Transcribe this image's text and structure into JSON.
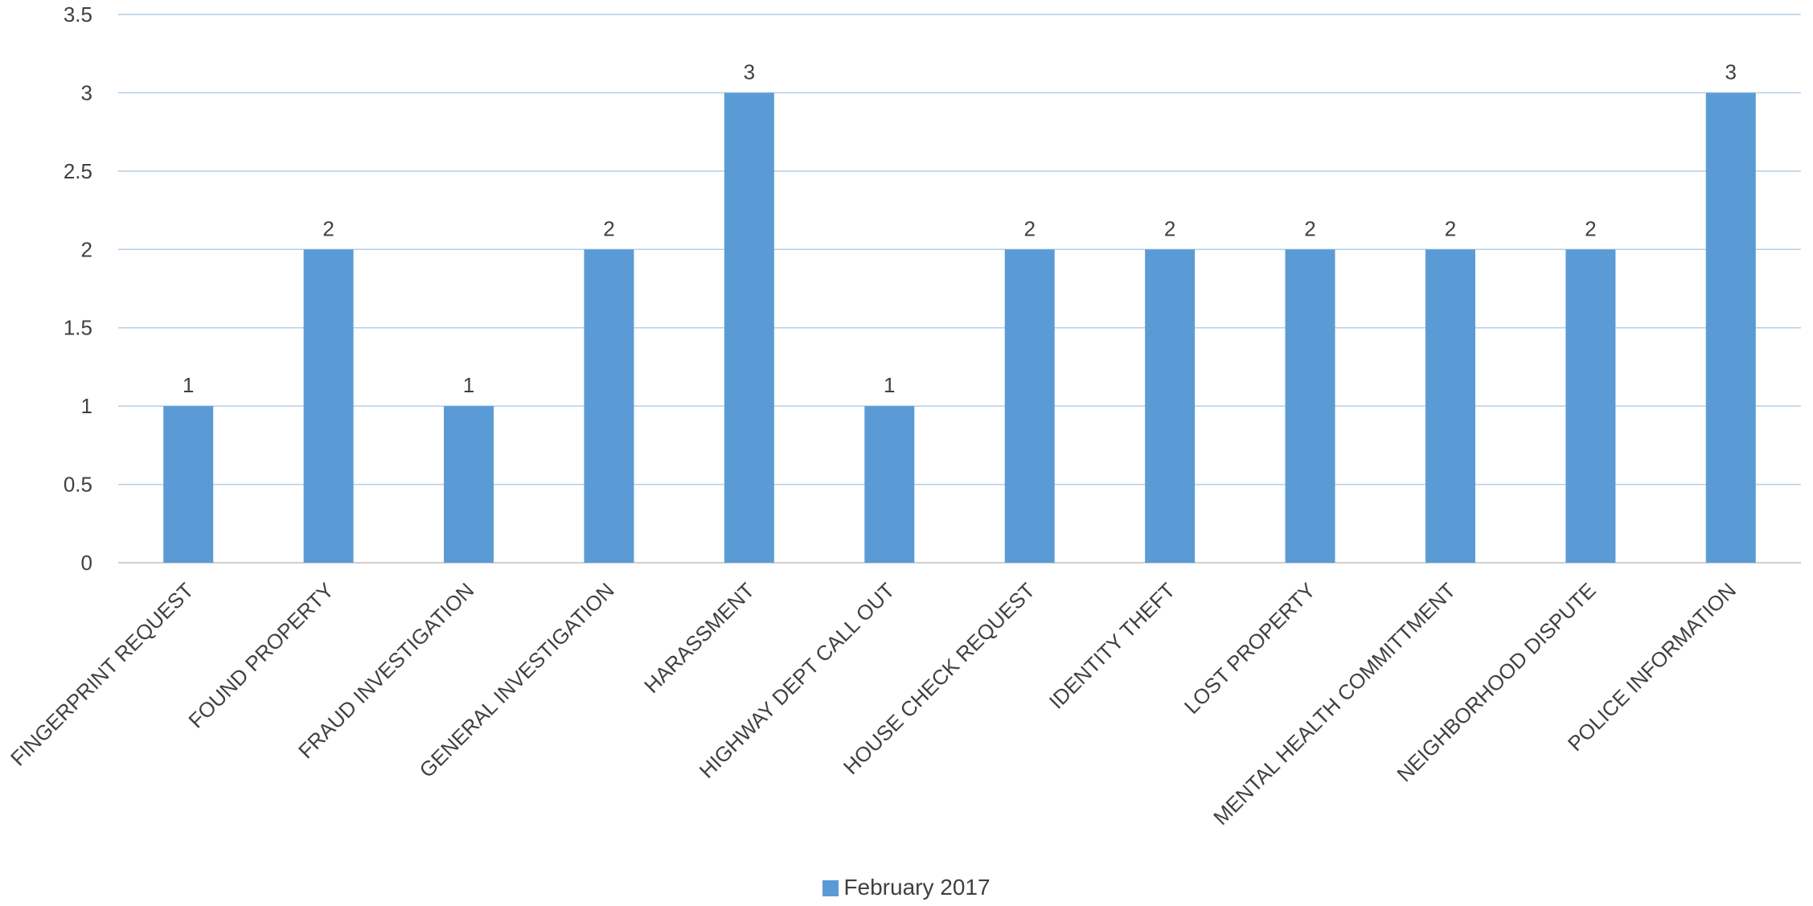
{
  "chart_data": {
    "type": "bar",
    "categories": [
      "FINGERPRINT REQUEST",
      "FOUND PROPERTY",
      "FRAUD INVESTIGATION",
      "GENERAL INVESTIGATION",
      "HARASSMENT",
      "HIGHWAY DEPT CALL OUT",
      "HOUSE CHECK REQUEST",
      "IDENTITY THEFT",
      "LOST PROPERTY",
      "MENTAL HEALTH COMMITTMENT",
      "NEIGHBORHOOD DISPUTE",
      "POLICE INFORMATION"
    ],
    "series": [
      {
        "name": "February 2017",
        "values": [
          1,
          2,
          1,
          2,
          3,
          1,
          2,
          2,
          2,
          2,
          2,
          3
        ]
      }
    ],
    "ylim": [
      0,
      3.5
    ],
    "yticks": [
      "0",
      "0.5",
      "1",
      "1.5",
      "2",
      "2.5",
      "3",
      "3.5"
    ],
    "data_labels": true,
    "grid": true,
    "legend_position": "bottom",
    "colors": {
      "bar": "#5B9BD5",
      "grid": "#B4CFE6",
      "text": "#404040"
    }
  },
  "legend": {
    "label": "February 2017"
  }
}
